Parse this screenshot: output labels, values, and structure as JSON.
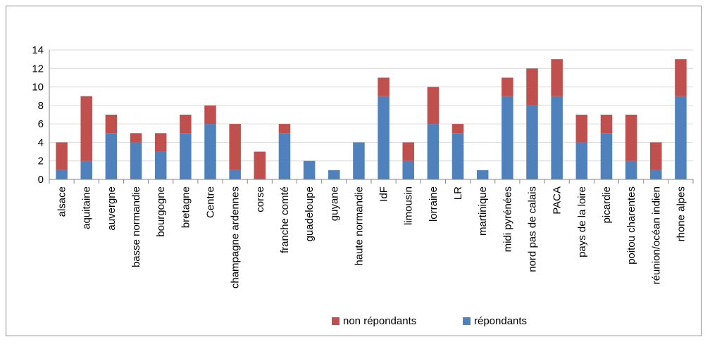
{
  "chart_data": {
    "type": "bar",
    "stacked": true,
    "title": "",
    "xlabel": "",
    "ylabel": "",
    "ylim": [
      0,
      14
    ],
    "ytick_step": 2,
    "grid": true,
    "legend_position": "bottom",
    "categories": [
      "alsace",
      "aquitaine",
      "auvergne",
      "basse normandie",
      "bourgogne",
      "bretagne",
      "Centre",
      "champagne ardennes",
      "corse",
      "franche comté",
      "guadeloupe",
      "guyane",
      "haute normandie",
      "IdF",
      "limousin",
      "lorraine",
      "LR",
      "martinique",
      "midi pyrénées",
      "nord pas de calais",
      "PACA",
      "pays de la loire",
      "picardie",
      "poitou charentes",
      "réunion/océan indien",
      "rhone alpes"
    ],
    "series": [
      {
        "name": "répondants",
        "color": "#4f81bd",
        "values": [
          1,
          2,
          5,
          4,
          3,
          5,
          6,
          1,
          0,
          5,
          2,
          1,
          4,
          9,
          2,
          6,
          5,
          1,
          9,
          8,
          9,
          4,
          5,
          2,
          1,
          9
        ]
      },
      {
        "name": "non répondants",
        "color": "#c0504d",
        "values": [
          3,
          7,
          2,
          1,
          2,
          2,
          2,
          5,
          3,
          1,
          0,
          0,
          0,
          2,
          2,
          4,
          1,
          0,
          2,
          4,
          4,
          3,
          2,
          5,
          3,
          4
        ]
      }
    ],
    "legend_order": [
      "non répondants",
      "répondants"
    ]
  }
}
